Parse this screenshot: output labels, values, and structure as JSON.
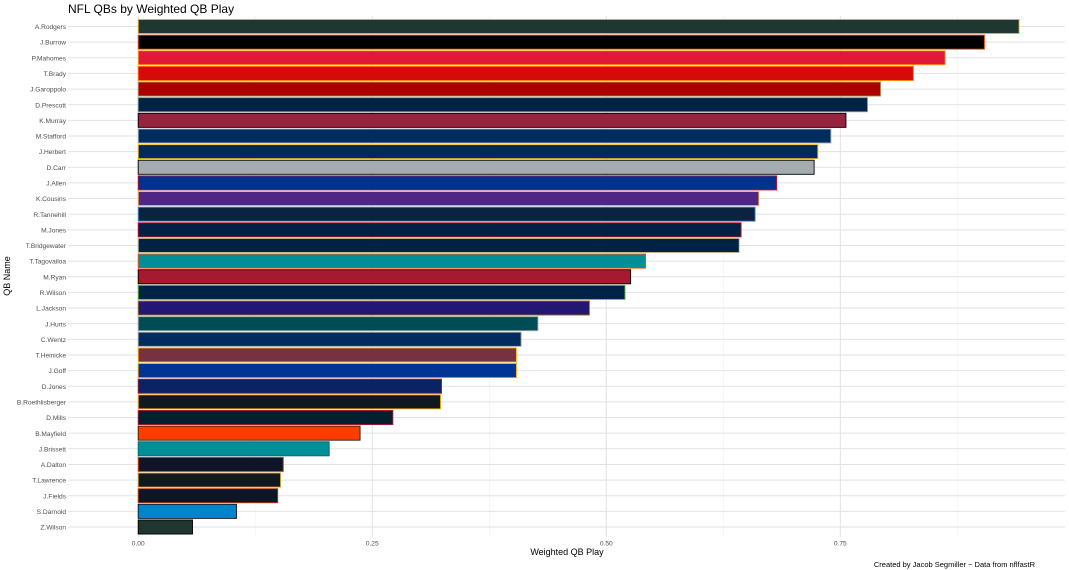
{
  "chart_data": {
    "type": "bar",
    "orientation": "horizontal",
    "title": "NFL QBs by Weighted QB Play",
    "xlabel": "Weighted QB Play",
    "ylabel": "QB Name",
    "caption": "Created by Jacob Segmiller ~ Data from nflfastR",
    "xlim": [
      -0.075,
      0.99
    ],
    "xticks": [
      0.0,
      0.25,
      0.5,
      0.75
    ],
    "xtick_labels": [
      "0.00",
      "0.25",
      "0.50",
      "0.75"
    ],
    "grid": true,
    "categories": [
      "A.Rodgers",
      "J.Burrow",
      "P.Mahomes",
      "T.Brady",
      "J.Garoppolo",
      "D.Prescott",
      "K.Murray",
      "M.Stafford",
      "J.Herbert",
      "D.Carr",
      "J.Allen",
      "K.Cousins",
      "R.Tannehill",
      "M.Jones",
      "T.Bridgewater",
      "T.Tagovailoa",
      "M.Ryan",
      "R.Wilson",
      "L.Jackson",
      "J.Hurts",
      "C.Wentz",
      "T.Heinicke",
      "J.Goff",
      "D.Jones",
      "B.Roethlisberger",
      "D.Mills",
      "B.Mayfield",
      "J.Brissett",
      "A.Dalton",
      "T.Lawrence",
      "J.Fields",
      "S.Darnold",
      "Z.Wilson"
    ],
    "values": [
      0.941,
      0.904,
      0.862,
      0.828,
      0.793,
      0.779,
      0.756,
      0.74,
      0.726,
      0.722,
      0.682,
      0.663,
      0.659,
      0.644,
      0.642,
      0.542,
      0.526,
      0.52,
      0.482,
      0.427,
      0.409,
      0.404,
      0.404,
      0.324,
      0.323,
      0.272,
      0.237,
      0.204,
      0.155,
      0.152,
      0.149,
      0.105,
      0.058
    ],
    "fill_colors": [
      "#203731",
      "#000000",
      "#E31837",
      "#D50A0A",
      "#AA0000",
      "#002244",
      "#97233F",
      "#002C5F",
      "#002A5E",
      "#A5ACAF",
      "#00338D",
      "#4F2683",
      "#0C2340",
      "#002244",
      "#002244",
      "#008E97",
      "#A71930",
      "#002244",
      "#241773",
      "#004C54",
      "#002C5F",
      "#773141",
      "#003594",
      "#0B2265",
      "#101820",
      "#03202F",
      "#FF3C00",
      "#008E97",
      "#0B162A",
      "#101820",
      "#0B162A",
      "#0085CA",
      "#203731"
    ],
    "border_colors": [
      "#FFB612",
      "#FB4F14",
      "#FFB612",
      "#FF7900",
      "#B3995D",
      "#869397",
      "#000000",
      "#B0B7BC",
      "#FFC20E",
      "#000000",
      "#C60C30",
      "#FFC62F",
      "#4B92DB",
      "#C60C30",
      "#D3BC8D",
      "#FC4C02",
      "#000000",
      "#69BE28",
      "#9E7C0C",
      "#A5ACAF",
      "#A2AAAD",
      "#FFB612",
      "#FFA300",
      "#A71930",
      "#FFB612",
      "#A71930",
      "#311D00",
      "#006778",
      "#E64100",
      "#D7A22A",
      "#C83803",
      "#101820",
      "#000000"
    ]
  }
}
